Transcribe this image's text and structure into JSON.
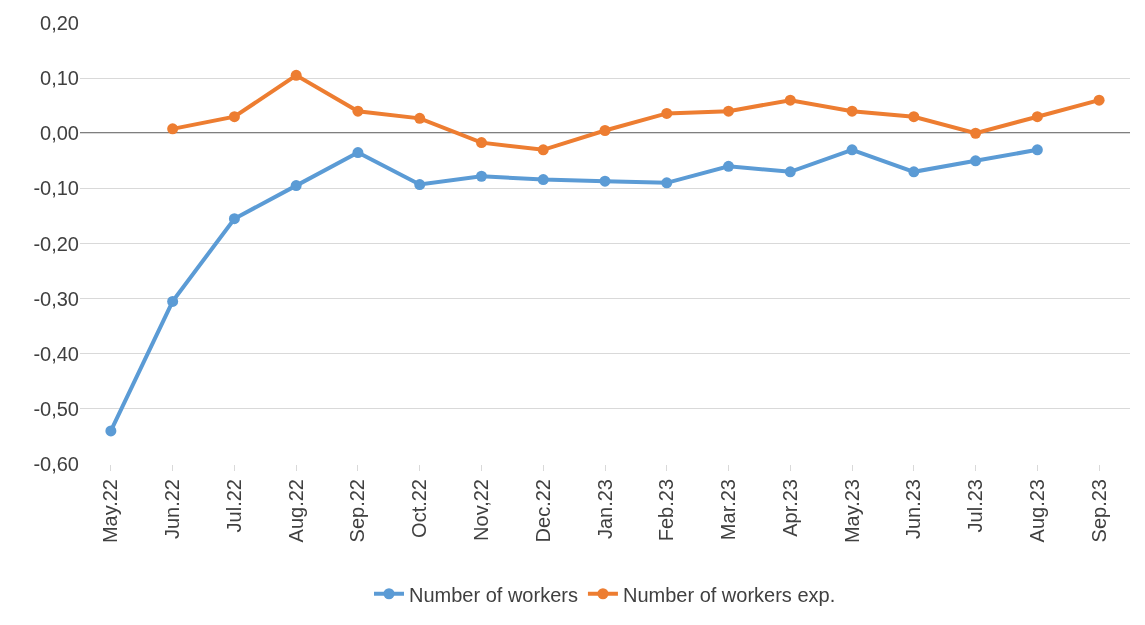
{
  "chart_data": {
    "type": "line",
    "categories": [
      "May.22",
      "Jun.22",
      "Jul.22",
      "Aug.22",
      "Sep.22",
      "Oct.22",
      "Nov,22",
      "Dec.22",
      "Jan.23",
      "Feb.23",
      "Mar.23",
      "Apr.23",
      "May.23",
      "Jun.23",
      "Jul.23",
      "Aug.23",
      "Sep.23"
    ],
    "series": [
      {
        "name": "Number of workers",
        "color": "#5b9bd5",
        "values": [
          -0.54,
          -0.305,
          -0.155,
          -0.095,
          -0.035,
          -0.093,
          -0.078,
          -0.084,
          -0.087,
          -0.09,
          -0.06,
          -0.07,
          -0.03,
          -0.07,
          -0.05,
          -0.03,
          null
        ]
      },
      {
        "name": "Number of workers exp.",
        "color": "#ed7d31",
        "values": [
          null,
          0.008,
          0.03,
          0.105,
          0.04,
          0.027,
          -0.017,
          -0.03,
          0.005,
          0.036,
          0.04,
          0.06,
          0.04,
          0.03,
          0.0,
          0.03,
          0.06
        ]
      }
    ],
    "ylim": [
      -0.6,
      0.2
    ],
    "yticks": [
      {
        "value": -0.6,
        "label": "-0,60"
      },
      {
        "value": -0.5,
        "label": "-0,50"
      },
      {
        "value": -0.4,
        "label": "-0,40"
      },
      {
        "value": -0.3,
        "label": "-0,30"
      },
      {
        "value": -0.2,
        "label": "-0,20"
      },
      {
        "value": -0.1,
        "label": "-0,10"
      },
      {
        "value": 0,
        "label": "0,00"
      },
      {
        "value": 0.1,
        "label": "0,10"
      },
      {
        "value": 0.2,
        "label": "0,20"
      }
    ],
    "ref_lines": [
      {
        "axis": "y",
        "value": 0,
        "color": "#000000"
      }
    ],
    "grid": "y",
    "legend": "bottom",
    "marker": "circle",
    "line_style": "solid"
  }
}
